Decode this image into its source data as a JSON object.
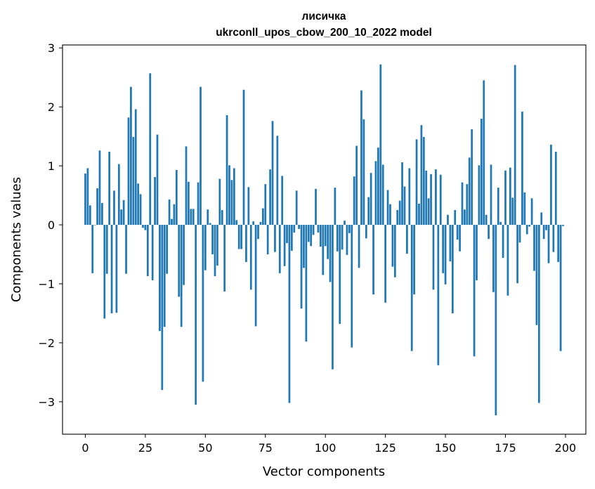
{
  "chart_data": {
    "type": "bar",
    "title": "лисичка",
    "subtitle": "ukrconll_upos_cbow_200_10_2022 model",
    "xlabel": "Vector components",
    "ylabel": "Components values",
    "xlim": [
      -9.5,
      208.5
    ],
    "ylim": [
      -3.55,
      3.05
    ],
    "xticks": [
      0,
      25,
      50,
      75,
      100,
      125,
      150,
      175,
      200
    ],
    "xtick_labels": [
      "0",
      "25",
      "50",
      "75",
      "100",
      "125",
      "150",
      "175",
      "200"
    ],
    "yticks": [
      -3,
      -2,
      -1,
      0,
      1,
      2,
      3
    ],
    "ytick_labels": [
      "−3",
      "−2",
      "−1",
      "0",
      "1",
      "2",
      "3"
    ],
    "grid": false,
    "legend": "none",
    "bar_color": "#1f77b4",
    "x": [
      0,
      1,
      2,
      3,
      4,
      5,
      6,
      7,
      8,
      9,
      10,
      11,
      12,
      13,
      14,
      15,
      16,
      17,
      18,
      19,
      20,
      21,
      22,
      23,
      24,
      25,
      26,
      27,
      28,
      29,
      30,
      31,
      32,
      33,
      34,
      35,
      36,
      37,
      38,
      39,
      40,
      41,
      42,
      43,
      44,
      45,
      46,
      47,
      48,
      49,
      50,
      51,
      52,
      53,
      54,
      55,
      56,
      57,
      58,
      59,
      60,
      61,
      62,
      63,
      64,
      65,
      66,
      67,
      68,
      69,
      70,
      71,
      72,
      73,
      74,
      75,
      76,
      77,
      78,
      79,
      80,
      81,
      82,
      83,
      84,
      85,
      86,
      87,
      88,
      89,
      90,
      91,
      92,
      93,
      94,
      95,
      96,
      97,
      98,
      99,
      100,
      101,
      102,
      103,
      104,
      105,
      106,
      107,
      108,
      109,
      110,
      111,
      112,
      113,
      114,
      115,
      116,
      117,
      118,
      119,
      120,
      121,
      122,
      123,
      124,
      125,
      126,
      127,
      128,
      129,
      130,
      131,
      132,
      133,
      134,
      135,
      136,
      137,
      138,
      139,
      140,
      141,
      142,
      143,
      144,
      145,
      146,
      147,
      148,
      149,
      150,
      151,
      152,
      153,
      154,
      155,
      156,
      157,
      158,
      159,
      160,
      161,
      162,
      163,
      164,
      165,
      166,
      167,
      168,
      169,
      170,
      171,
      172,
      173,
      174,
      175,
      176,
      177,
      178,
      179,
      180,
      181,
      182,
      183,
      184,
      185,
      186,
      187,
      188,
      189,
      190,
      191,
      192,
      193,
      194,
      195,
      196,
      197,
      198,
      199
    ],
    "values": [
      0.87,
      0.96,
      0.33,
      -0.82,
      0.0,
      0.62,
      1.26,
      0.37,
      -1.59,
      -0.83,
      1.24,
      -1.5,
      0.58,
      -1.49,
      1.03,
      0.26,
      0.42,
      -0.83,
      1.82,
      2.34,
      1.49,
      1.96,
      0.7,
      0.52,
      -0.05,
      -0.09,
      -0.87,
      2.57,
      -0.94,
      0.81,
      1.53,
      -1.8,
      -2.8,
      -1.73,
      -0.83,
      0.43,
      0.1,
      0.35,
      0.93,
      -1.22,
      -1.73,
      -1.02,
      1.33,
      0.73,
      0.27,
      0.27,
      -3.05,
      0.72,
      2.34,
      -2.66,
      -0.77,
      0.26,
      0.03,
      -0.5,
      -0.87,
      -0.69,
      0.78,
      0.25,
      -1.13,
      1.86,
      1.01,
      0.76,
      0.96,
      0.08,
      -0.41,
      -0.41,
      2.29,
      -0.63,
      0.64,
      -1.1,
      0.06,
      -1.72,
      -0.24,
      0.05,
      0.28,
      0.69,
      -0.5,
      0.94,
      1.76,
      -0.46,
      1.51,
      -0.82,
      0.83,
      -0.7,
      -0.31,
      -3.02,
      -0.44,
      -0.13,
      0.58,
      -0.07,
      -1.42,
      -0.73,
      -1.98,
      -0.29,
      -0.36,
      -0.17,
      0.61,
      -0.13,
      -0.37,
      -0.85,
      -0.36,
      -0.58,
      -0.97,
      -2.45,
      0.63,
      -0.45,
      -1.68,
      -0.42,
      0.07,
      -0.51,
      -0.14,
      -2.08,
      0.82,
      1.34,
      -0.73,
      2.28,
      1.79,
      -0.23,
      0.47,
      0.88,
      -1.18,
      1.08,
      1.31,
      2.72,
      1.02,
      -1.32,
      0.59,
      0.35,
      -0.71,
      -0.89,
      0.25,
      0.41,
      1.06,
      0.65,
      -0.49,
      0.96,
      -2.14,
      -1.18,
      1.45,
      0.36,
      1.69,
      1.49,
      0.92,
      0.45,
      0.86,
      -1.1,
      0.94,
      -2.38,
      0.85,
      -0.82,
      -1.01,
      0.17,
      -0.62,
      -1.5,
      0.25,
      -0.25,
      -0.45,
      0.72,
      0.26,
      0.69,
      1.14,
      1.62,
      -2.23,
      -0.94,
      1.01,
      1.8,
      2.45,
      0.17,
      -0.24,
      1.02,
      -1.14,
      -3.23,
      0.63,
      0.05,
      -0.56,
      0.92,
      -1.2,
      0.97,
      0.46,
      2.71,
      -0.99,
      -0.3,
      1.92,
      0.55,
      -0.16,
      -0.03,
      0.45,
      -0.78,
      -1.7,
      -3.02,
      0.21,
      -0.24,
      -0.09,
      -0.65,
      1.36,
      -0.46,
      1.24,
      -0.63,
      -2.14,
      -0.02
    ]
  }
}
